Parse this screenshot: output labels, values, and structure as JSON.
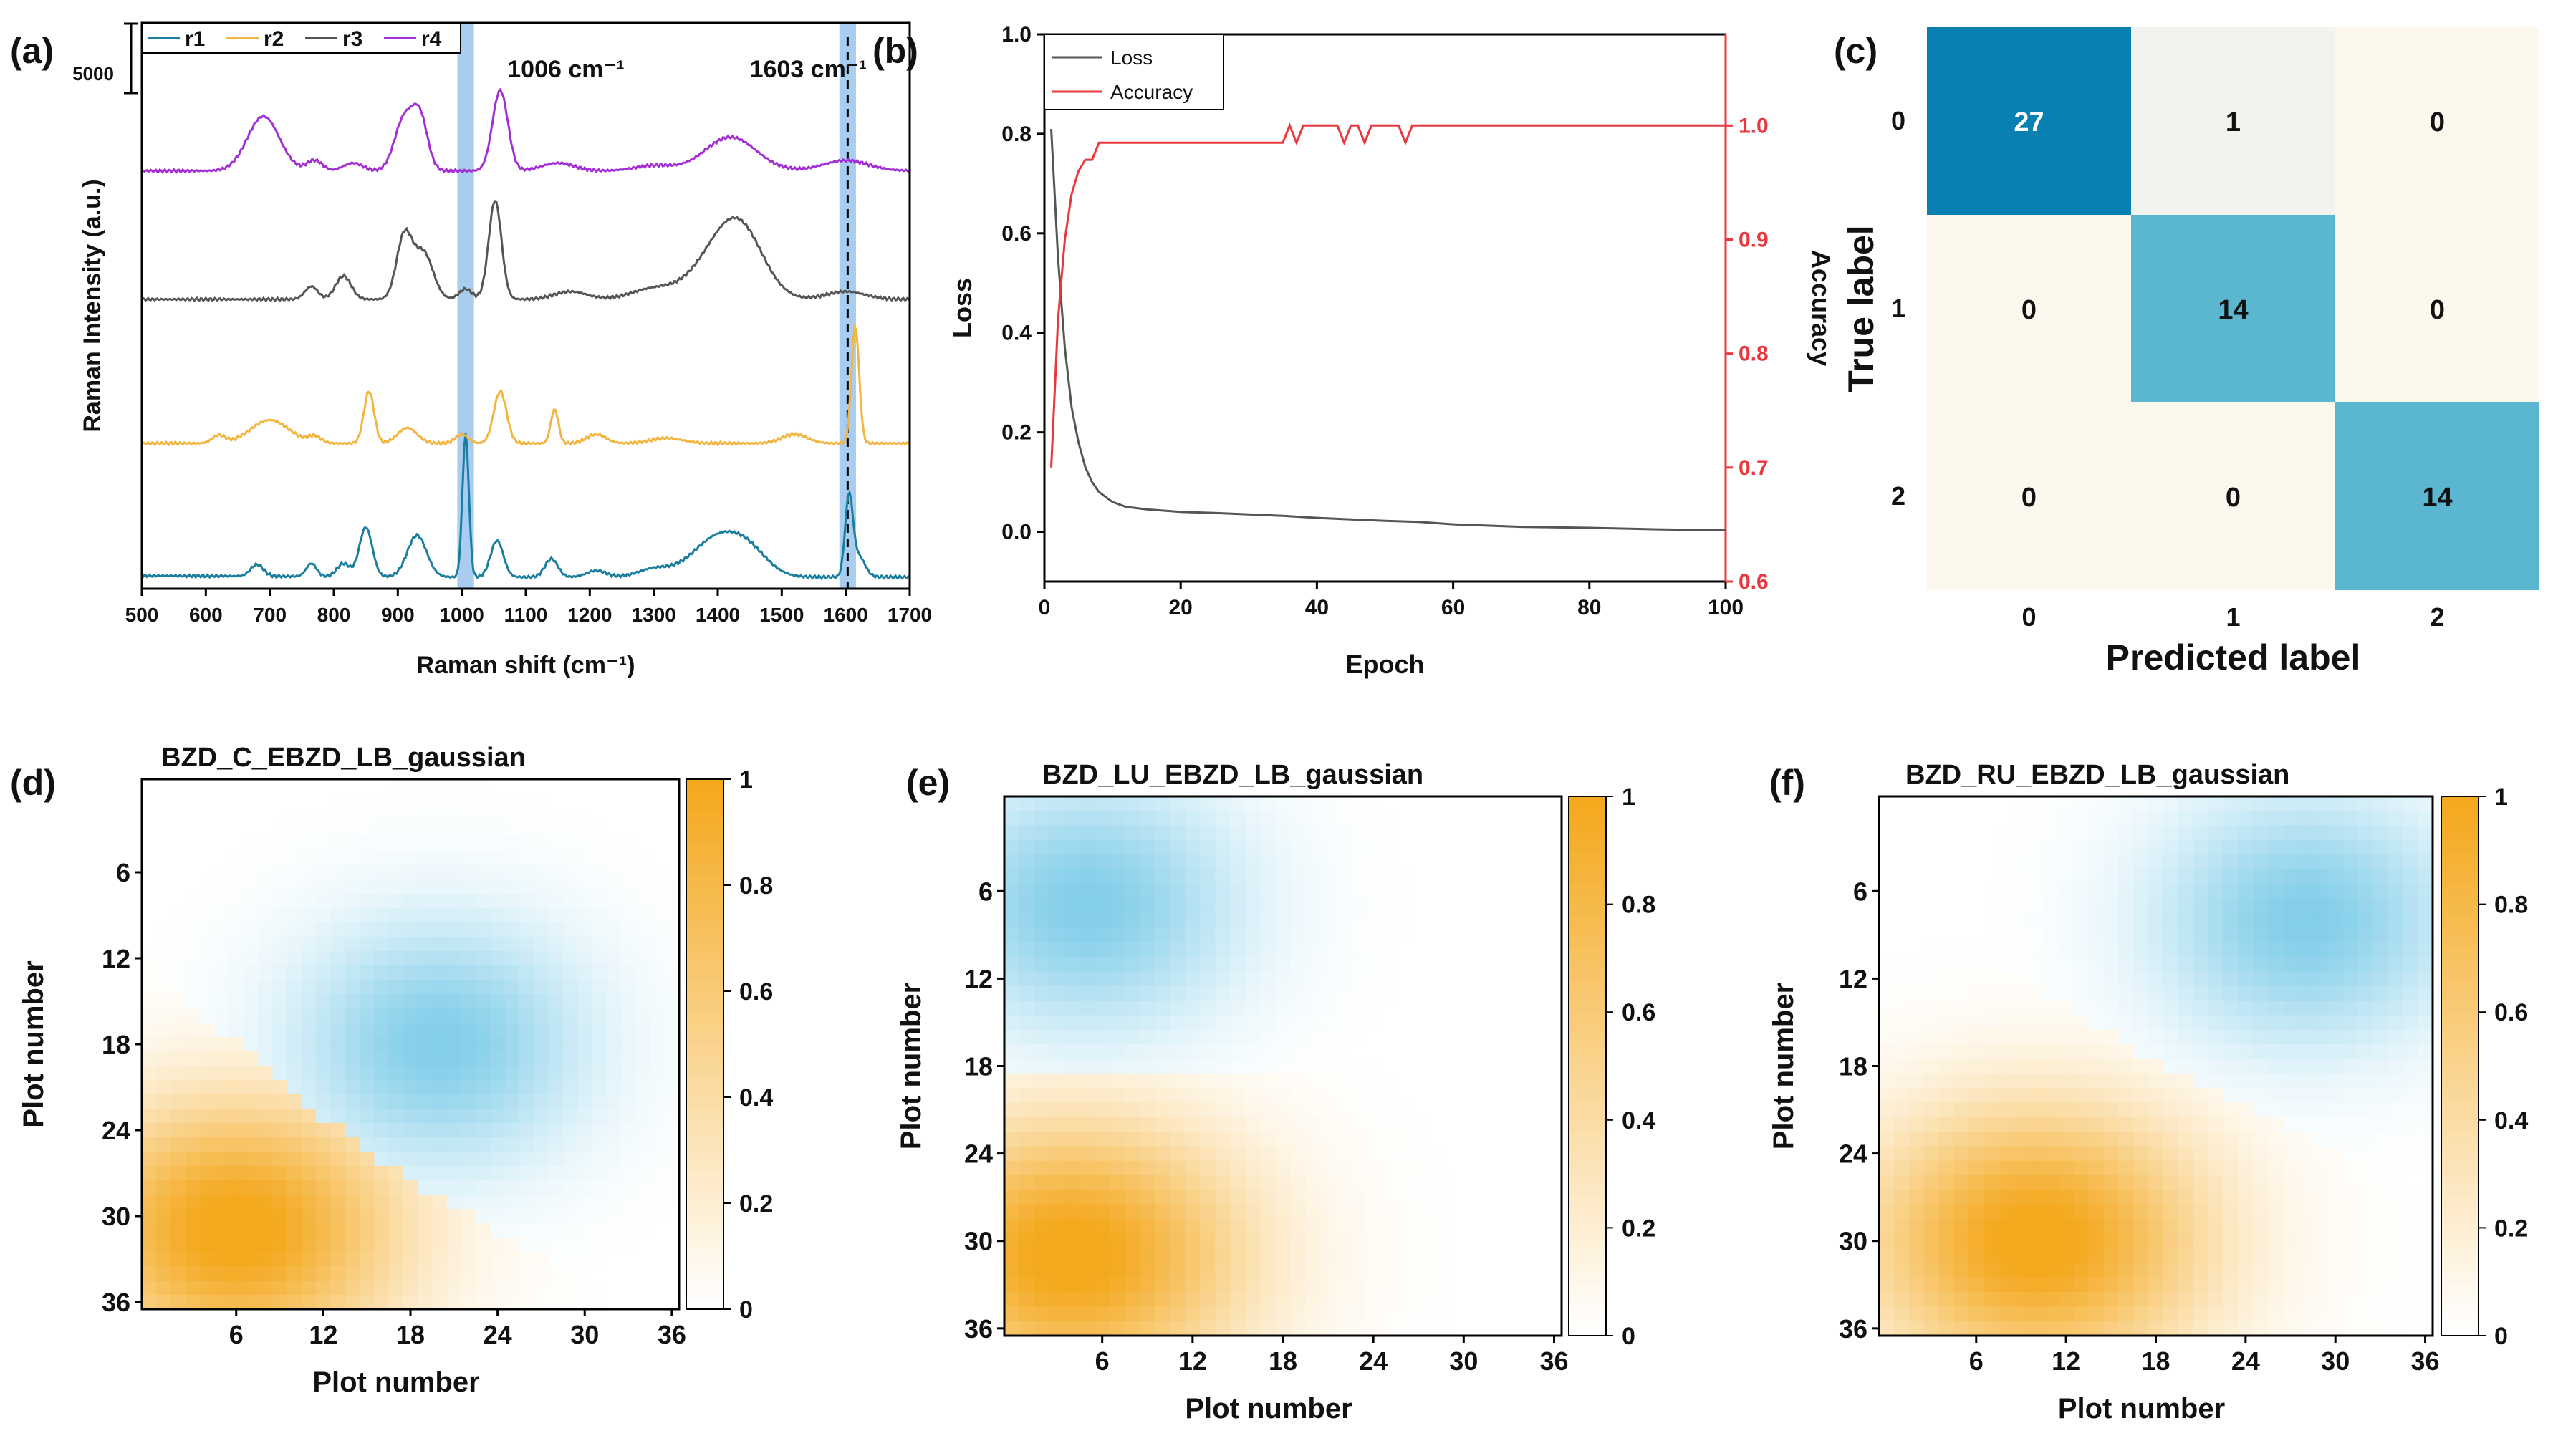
{
  "colors": {
    "r1": "#1a7e9e",
    "r2": "#f4b53f",
    "r3": "#555555",
    "r4": "#a32ed6",
    "band": "#a9cdf0",
    "loss": "#555555",
    "accuracy": "#e8383d",
    "cm_high": "#0a80b2",
    "cm_mid": "#5ab7cf",
    "cm_low": "#f1f3ee",
    "cm_zero": "#fdf8ee",
    "heat_orange": "#f4a81d",
    "heat_blue": "#7ccbe8",
    "heat_green": "#7fd5a8"
  },
  "chart_data": [
    {
      "panel": "(a)",
      "type": "line",
      "xlabel": "Raman shift (cm⁻¹)",
      "ylabel": "Raman Intensity (a.u.)",
      "xlim": [
        500,
        1700
      ],
      "xticks": [
        500,
        600,
        700,
        800,
        900,
        1000,
        1100,
        1200,
        1300,
        1400,
        1500,
        1600,
        1700
      ],
      "scale_bar_label": "5000",
      "bands": [
        {
          "center": 1006,
          "label": "1006 cm⁻¹"
        },
        {
          "center": 1603,
          "label": "1603 cm⁻¹"
        }
      ],
      "legend": [
        "r1",
        "r2",
        "r3",
        "r4"
      ],
      "series": [
        {
          "name": "r1",
          "offset": 0,
          "baseline": [
            [
              500,
              200
            ],
            [
              1000,
              150
            ],
            [
              1700,
              150
            ]
          ],
          "peaks": [
            [
              680,
              450,
              10
            ],
            [
              765,
              500,
              8
            ],
            [
              815,
              500,
              10
            ],
            [
              850,
              1900,
              10
            ],
            [
              930,
              1600,
              15
            ],
            [
              1006,
              5500,
              5
            ],
            [
              1055,
              1400,
              10
            ],
            [
              1140,
              700,
              10
            ],
            [
              1210,
              250,
              15
            ],
            [
              1300,
              300,
              25
            ],
            [
              1400,
              1500,
              40
            ],
            [
              1450,
              700,
              30
            ],
            [
              1605,
              3000,
              6
            ],
            [
              1620,
              800,
              10
            ]
          ]
        },
        {
          "name": "r2",
          "offset": 5300,
          "baseline": [
            [
              500,
              0
            ],
            [
              1700,
              0
            ]
          ],
          "peaks": [
            [
              620,
              300,
              10
            ],
            [
              700,
              900,
              30
            ],
            [
              770,
              250,
              10
            ],
            [
              855,
              2000,
              8
            ],
            [
              915,
              600,
              15
            ],
            [
              1000,
              350,
              10
            ],
            [
              1060,
              2000,
              10
            ],
            [
              1145,
              1300,
              6
            ],
            [
              1210,
              350,
              15
            ],
            [
              1320,
              200,
              25
            ],
            [
              1520,
              350,
              20
            ],
            [
              1615,
              4500,
              6
            ]
          ]
        },
        {
          "name": "r3",
          "offset": 10700,
          "baseline": [
            [
              500,
              150
            ],
            [
              1700,
              150
            ]
          ],
          "peaks": [
            [
              765,
              500,
              10
            ],
            [
              815,
              900,
              12
            ],
            [
              910,
              2400,
              12
            ],
            [
              940,
              1800,
              15
            ],
            [
              1006,
              400,
              10
            ],
            [
              1052,
              3800,
              10
            ],
            [
              1170,
              300,
              25
            ],
            [
              1300,
              400,
              35
            ],
            [
              1400,
              1600,
              40
            ],
            [
              1440,
              2000,
              35
            ],
            [
              1600,
              300,
              30
            ]
          ]
        },
        {
          "name": "r4",
          "offset": 15600,
          "baseline": [
            [
              500,
              200
            ],
            [
              1700,
              200
            ]
          ],
          "peaks": [
            [
              690,
              2100,
              25
            ],
            [
              770,
              400,
              12
            ],
            [
              830,
              300,
              15
            ],
            [
              910,
              2000,
              15
            ],
            [
              935,
              1900,
              12
            ],
            [
              1060,
              3100,
              12
            ],
            [
              1150,
              300,
              25
            ],
            [
              1300,
              200,
              30
            ],
            [
              1420,
              1300,
              40
            ],
            [
              1600,
              400,
              35
            ]
          ]
        }
      ]
    },
    {
      "panel": "(b)",
      "type": "line",
      "xlabel": "Epoch",
      "ylabel_left": "Loss",
      "ylabel_right": "Accuracy",
      "xlim": [
        0,
        100
      ],
      "ylim_left": [
        -0.1,
        1.0
      ],
      "ylim_right": [
        0.6,
        1.08
      ],
      "xticks": [
        0,
        20,
        40,
        60,
        80,
        100
      ],
      "yticks_left": [
        0.0,
        0.2,
        0.4,
        0.6,
        0.8,
        1.0
      ],
      "yticks_right": [
        0.6,
        0.7,
        0.8,
        0.9,
        1.0
      ],
      "legend": [
        "Loss",
        "Accuracy"
      ],
      "series": [
        {
          "name": "Loss",
          "x": [
            1,
            2,
            3,
            4,
            5,
            6,
            7,
            8,
            10,
            12,
            15,
            20,
            25,
            30,
            35,
            40,
            45,
            50,
            55,
            60,
            70,
            80,
            90,
            100
          ],
          "y": [
            0.81,
            0.55,
            0.37,
            0.25,
            0.18,
            0.13,
            0.1,
            0.08,
            0.06,
            0.05,
            0.045,
            0.04,
            0.038,
            0.035,
            0.032,
            0.028,
            0.025,
            0.022,
            0.02,
            0.015,
            0.01,
            0.008,
            0.005,
            0.003
          ]
        },
        {
          "name": "Accuracy",
          "x": [
            1,
            2,
            3,
            4,
            5,
            6,
            7,
            8,
            35,
            36,
            37,
            38,
            43,
            44,
            45,
            46,
            47,
            48,
            52,
            53,
            54,
            100
          ],
          "y": [
            0.7,
            0.83,
            0.9,
            0.94,
            0.96,
            0.97,
            0.97,
            0.985,
            0.985,
            1.0,
            0.985,
            1.0,
            1.0,
            0.985,
            1.0,
            1.0,
            0.985,
            1.0,
            1.0,
            0.985,
            1.0,
            1.0
          ]
        }
      ]
    },
    {
      "panel": "(c)",
      "type": "heatmap",
      "title": "",
      "xlabel": "Predicted label",
      "ylabel": "True label",
      "xticks": [
        "0",
        "1",
        "2"
      ],
      "yticks": [
        "0",
        "1",
        "2"
      ],
      "matrix": [
        [
          27,
          1,
          0
        ],
        [
          0,
          14,
          0
        ],
        [
          0,
          0,
          14
        ]
      ]
    },
    {
      "panel": "(d)",
      "type": "heatmap",
      "title": "BZD_C_EBZD_LB_gaussian",
      "xlabel": "Plot number",
      "ylabel": "Plot number",
      "xticks": [
        "6",
        "12",
        "18",
        "24",
        "30",
        "36"
      ],
      "yticks": [
        "6",
        "12",
        "18",
        "24",
        "30",
        "36"
      ],
      "colorbar_ticks": [
        "0",
        "0.2",
        "0.4",
        "0.6",
        "0.8",
        "1"
      ],
      "orange_center": [
        6,
        31
      ],
      "blue_center": [
        20,
        18
      ]
    },
    {
      "panel": "(e)",
      "type": "heatmap",
      "title": "BZD_LU_EBZD_LB_gaussian",
      "xlabel": "Plot number",
      "ylabel": "Plot number",
      "xticks": [
        "6",
        "12",
        "18",
        "24",
        "30",
        "36"
      ],
      "yticks": [
        "6",
        "12",
        "18",
        "24",
        "30",
        "36"
      ],
      "colorbar_ticks": [
        "0",
        "0.2",
        "0.4",
        "0.6",
        "0.8",
        "1"
      ],
      "orange_center": [
        4,
        31
      ],
      "blue_center": [
        5,
        7
      ]
    },
    {
      "panel": "(f)",
      "type": "heatmap",
      "title": "BZD_RU_EBZD_LB_gaussian",
      "xlabel": "Plot number",
      "ylabel": "Plot number",
      "xticks": [
        "6",
        "12",
        "18",
        "24",
        "30",
        "36"
      ],
      "yticks": [
        "6",
        "12",
        "18",
        "24",
        "30",
        "36"
      ],
      "colorbar_ticks": [
        "0",
        "0.2",
        "0.4",
        "0.6",
        "0.8",
        "1"
      ],
      "orange_center": [
        10,
        30
      ],
      "blue_center": [
        28,
        8
      ]
    }
  ]
}
